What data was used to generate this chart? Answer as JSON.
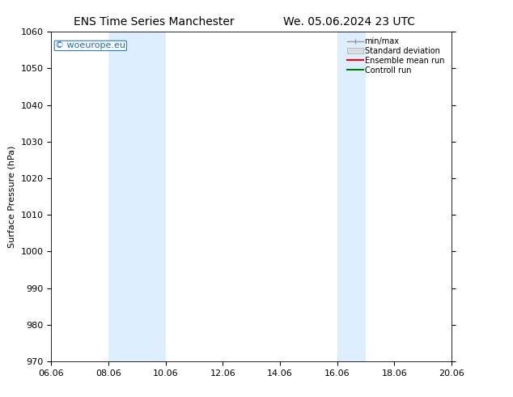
{
  "title_left": "ENS Time Series Manchester",
  "title_right": "We. 05.06.2024 23 UTC",
  "ylabel": "Surface Pressure (hPa)",
  "ylim": [
    970,
    1060
  ],
  "yticks": [
    970,
    980,
    990,
    1000,
    1010,
    1020,
    1030,
    1040,
    1050,
    1060
  ],
  "xtick_labels": [
    "06.06",
    "08.06",
    "10.06",
    "12.06",
    "14.06",
    "16.06",
    "18.06",
    "20.06"
  ],
  "xtick_values": [
    0,
    2,
    4,
    6,
    8,
    10,
    12,
    14
  ],
  "xlim": [
    0,
    14
  ],
  "shade_bands": [
    {
      "x_start": 2,
      "x_end": 4,
      "color": "#ddeeff"
    },
    {
      "x_start": 10,
      "x_end": 11,
      "color": "#ddeeff"
    }
  ],
  "watermark_text": "© woeurope.eu",
  "watermark_color": "#1a6bbf",
  "legend_labels": [
    "min/max",
    "Standard deviation",
    "Ensemble mean run",
    "Controll run"
  ],
  "legend_colors": [
    "#aaaaaa",
    "#cccccc",
    "#ff0000",
    "#008000"
  ],
  "background_color": "#ffffff",
  "plot_bg_color": "#ffffff",
  "title_fontsize": 10,
  "tick_fontsize": 8,
  "ylabel_fontsize": 8
}
